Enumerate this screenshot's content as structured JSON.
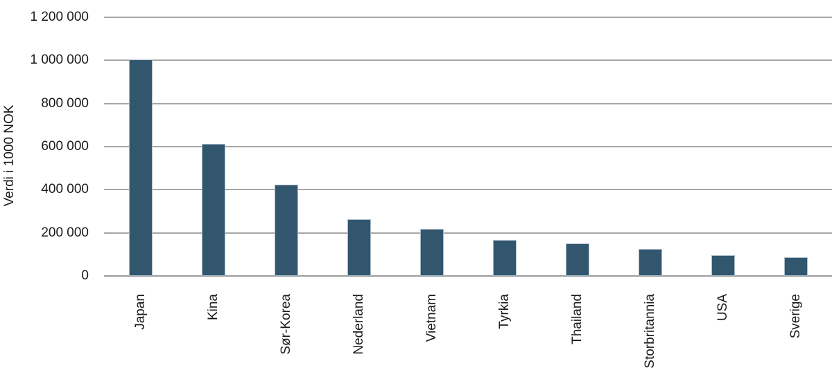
{
  "chart_data": {
    "type": "bar",
    "title": "",
    "categories": [
      "Japan",
      "Kina",
      "Sør-Korea",
      "Nederland",
      "Vietnam",
      "Tyrkia",
      "Thailand",
      "Storbritannia",
      "USA",
      "Sverige"
    ],
    "values": [
      1005000,
      612000,
      422000,
      262000,
      219000,
      167000,
      151000,
      124000,
      97000,
      88000
    ],
    "xlabel": "",
    "ylabel": "Verdi i 1000 NOK",
    "ylim": [
      0,
      1200000
    ],
    "ytick_interval": 200000,
    "ytick_labels": [
      "0",
      "200 000",
      "400 000",
      "600 000",
      "800 000",
      "1 000 000",
      "1 200 000"
    ],
    "grid": true,
    "legend": false,
    "layout_hints": {
      "bar_color": "#31566e",
      "bar_edge_color": "#a9bdc9",
      "gridline_color": "#a6a6a6",
      "text_color": "#1a1a1a",
      "background_color": "#ffffff",
      "x_labels_rotated": "90deg bottom-to-top",
      "legend_position": "none"
    }
  }
}
